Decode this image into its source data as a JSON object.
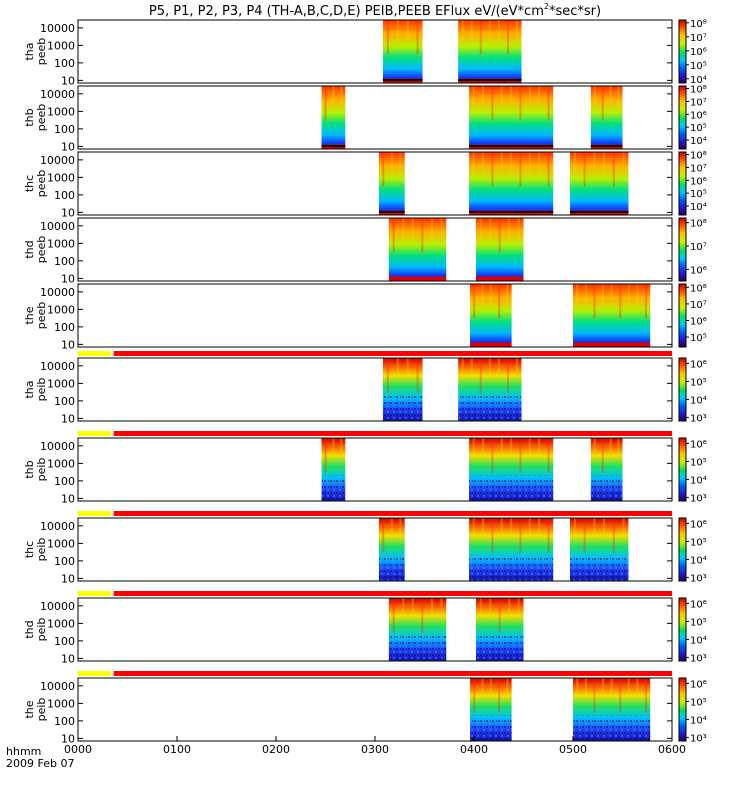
{
  "title": "P5, P1, P2, P3, P4 (TH-A,B,C,D,E) PEIB,PEEB EFlux eV/(eV*cm2*sec*sr)",
  "title_parts": {
    "pre": "P5, P1, P2, P3, P4 (TH-A,B,C,D,E) PEIB,PEEB EFlux eV/(eV*cm",
    "sup": "2",
    "post": "*sec*sr)"
  },
  "chart_data": {
    "type": "heatmap",
    "x_axis": {
      "label": "hhmm",
      "date_label": "2009 Feb 07",
      "ticks": [
        "0000",
        "0100",
        "0200",
        "0300",
        "0400",
        "0500",
        "0600"
      ],
      "range_hours": [
        0,
        6
      ]
    },
    "y_scale": "log",
    "panels": [
      {
        "id": "tha-peeb",
        "probe": "tha",
        "product": "peeb",
        "yticks": [
          "10000",
          "1000",
          "100",
          "10"
        ],
        "cbar_ticks": [
          "10⁸",
          "10⁷",
          "10⁶",
          "10⁵",
          "10⁴"
        ],
        "cbar_range_exp": [
          3.7,
          8.2
        ],
        "data_intervals": [
          [
            3.08,
            3.48
          ],
          [
            3.84,
            4.48
          ]
        ],
        "spacecraft_potential_line": true,
        "mode_bar": null
      },
      {
        "id": "thb-peeb",
        "probe": "thb",
        "product": "peeb",
        "yticks": [
          "10000",
          "1000",
          "100",
          "10"
        ],
        "cbar_ticks": [
          "10⁸",
          "10⁷",
          "10⁶",
          "10⁵",
          "10⁴"
        ],
        "cbar_range_exp": [
          3.3,
          8.2
        ],
        "data_intervals": [
          [
            2.46,
            2.7
          ],
          [
            3.95,
            4.8
          ],
          [
            5.18,
            5.5
          ]
        ],
        "spacecraft_potential_line": true,
        "mode_bar": null
      },
      {
        "id": "thc-peeb",
        "probe": "thc",
        "product": "peeb",
        "yticks": [
          "10000",
          "1000",
          "100",
          "10"
        ],
        "cbar_ticks": [
          "10⁸",
          "10⁷",
          "10⁶",
          "10⁵",
          "10⁴"
        ],
        "cbar_range_exp": [
          3.3,
          8.2
        ],
        "data_intervals": [
          [
            3.04,
            3.3
          ],
          [
            3.95,
            4.8
          ],
          [
            4.97,
            5.56
          ]
        ],
        "spacecraft_potential_line": true,
        "mode_bar": null
      },
      {
        "id": "thd-peeb",
        "probe": "thd",
        "product": "peeb",
        "yticks": [
          "10000",
          "1000",
          "100",
          "10"
        ],
        "cbar_ticks": [
          "10⁸",
          "10⁷",
          "10⁶"
        ],
        "cbar_range_exp": [
          5.5,
          8.2
        ],
        "data_intervals": [
          [
            3.14,
            3.72
          ],
          [
            4.02,
            4.5
          ]
        ],
        "spacecraft_potential_line": false,
        "mode_bar": null
      },
      {
        "id": "the-peeb",
        "probe": "the",
        "product": "peeb",
        "yticks": [
          "10000",
          "1000",
          "100",
          "10"
        ],
        "cbar_ticks": [
          "10⁸",
          "10⁷",
          "10⁶",
          "10⁵"
        ],
        "cbar_range_exp": [
          4.4,
          8.2
        ],
        "data_intervals": [
          [
            3.96,
            4.38
          ],
          [
            5.0,
            5.78
          ]
        ],
        "spacecraft_potential_line": false,
        "mode_bar": null
      },
      {
        "id": "tha-peib",
        "probe": "tha",
        "product": "peib",
        "yticks": [
          "10000",
          "1000",
          "100",
          "10"
        ],
        "cbar_ticks": [
          "10⁶",
          "10⁵",
          "10⁴",
          "10³"
        ],
        "cbar_range_exp": [
          2.8,
          6.3
        ],
        "data_intervals": [
          [
            3.08,
            3.48
          ],
          [
            3.84,
            4.48
          ]
        ],
        "spacecraft_potential_line": false,
        "mode_bar": {
          "yellow_until_h": 0.33,
          "red_from_h": 0.36
        }
      },
      {
        "id": "thb-peib",
        "probe": "thb",
        "product": "peib",
        "yticks": [
          "10000",
          "1000",
          "100",
          "10"
        ],
        "cbar_ticks": [
          "10⁶",
          "10⁵",
          "10⁴",
          "10³"
        ],
        "cbar_range_exp": [
          2.8,
          6.3
        ],
        "data_intervals": [
          [
            2.46,
            2.7
          ],
          [
            3.95,
            4.8
          ],
          [
            5.18,
            5.5
          ]
        ],
        "spacecraft_potential_line": false,
        "mode_bar": {
          "yellow_until_h": 0.33,
          "red_from_h": 0.36
        }
      },
      {
        "id": "thc-peib",
        "probe": "thc",
        "product": "peib",
        "yticks": [
          "10000",
          "1000",
          "100",
          "10"
        ],
        "cbar_ticks": [
          "10⁶",
          "10⁵",
          "10⁴",
          "10³"
        ],
        "cbar_range_exp": [
          2.8,
          6.3
        ],
        "data_intervals": [
          [
            3.04,
            3.3
          ],
          [
            3.95,
            4.8
          ],
          [
            4.97,
            5.56
          ]
        ],
        "spacecraft_potential_line": false,
        "mode_bar": {
          "yellow_until_h": 0.33,
          "red_from_h": 0.36
        }
      },
      {
        "id": "thd-peib",
        "probe": "thd",
        "product": "peib",
        "yticks": [
          "10000",
          "1000",
          "100",
          "10"
        ],
        "cbar_ticks": [
          "10⁶",
          "10⁵",
          "10⁴",
          "10³"
        ],
        "cbar_range_exp": [
          2.8,
          6.3
        ],
        "data_intervals": [
          [
            3.14,
            3.72
          ],
          [
            4.02,
            4.5
          ]
        ],
        "spacecraft_potential_line": false,
        "mode_bar": {
          "yellow_until_h": 0.33,
          "red_from_h": 0.36
        }
      },
      {
        "id": "the-peib",
        "probe": "the",
        "product": "peib",
        "yticks": [
          "10000",
          "1000",
          "100",
          "10"
        ],
        "cbar_ticks": [
          "10⁶",
          "10⁵",
          "10⁴",
          "10³"
        ],
        "cbar_range_exp": [
          2.8,
          6.3
        ],
        "data_intervals": [
          [
            3.96,
            4.38
          ],
          [
            5.0,
            5.78
          ]
        ],
        "spacecraft_potential_line": false,
        "mode_bar": {
          "yellow_until_h": 0.33,
          "red_from_h": 0.36
        }
      }
    ]
  },
  "colors": {
    "mode_bar_yellow": "#ffff00",
    "mode_bar_red": "#ff0000",
    "axis": "#000000",
    "background": "#ffffff"
  }
}
